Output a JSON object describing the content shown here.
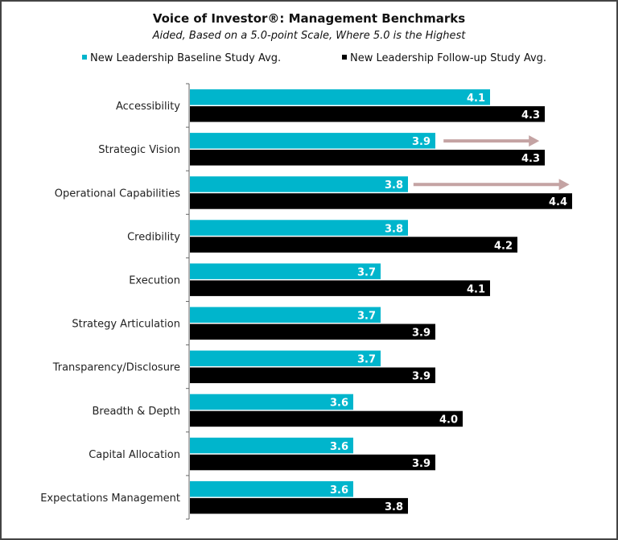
{
  "chart_data": {
    "type": "bar",
    "orientation": "horizontal",
    "title": "Voice of Investor®: Management Benchmarks",
    "subtitle": "Aided, Based on a 5.0-point Scale, Where 5.0 is the Highest",
    "xlabel": "",
    "ylabel": "",
    "xlim": [
      3.0,
      4.45
    ],
    "grid": false,
    "legend_position": "top",
    "categories": [
      "Accessibility",
      "Strategic Vision",
      "Operational Capabilities",
      "Credibility",
      "Execution",
      "Strategy Articulation",
      "Transparency/Disclosure",
      "Breadth & Depth",
      "Capital Allocation",
      "Expectations Management"
    ],
    "series": [
      {
        "name": "New Leadership Baseline Study Avg.",
        "color": "#00b5cc",
        "values": [
          4.1,
          3.9,
          3.8,
          3.8,
          3.7,
          3.7,
          3.7,
          3.6,
          3.6,
          3.6
        ]
      },
      {
        "name": "New Leadership Follow-up Study Avg.",
        "color": "#000000",
        "values": [
          4.3,
          4.3,
          4.4,
          4.2,
          4.1,
          3.9,
          3.9,
          4.0,
          3.9,
          3.8
        ]
      }
    ],
    "annotations": [
      {
        "type": "arrow",
        "category": "Strategic Vision",
        "from": 3.93,
        "to": 4.28,
        "color": "#c4a3a3"
      },
      {
        "type": "arrow",
        "category": "Operational Capabilities",
        "from": 3.82,
        "to": 4.39,
        "color": "#c4a3a3"
      }
    ]
  }
}
